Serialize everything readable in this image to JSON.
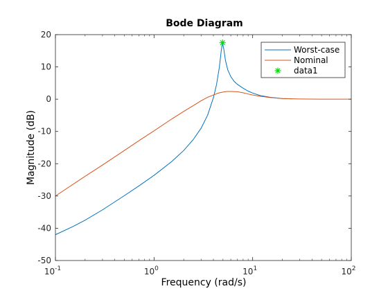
{
  "chart_data": {
    "type": "line",
    "title": "Bode Diagram",
    "xlabel": "Frequency  (rad/s)",
    "ylabel": "Magnitude (dB)",
    "xscale": "log",
    "xlim": [
      0.1,
      100
    ],
    "ylim": [
      -50,
      20
    ],
    "xticks": [
      {
        "value": 0.1,
        "base": "10",
        "exp": "-1"
      },
      {
        "value": 1,
        "base": "10",
        "exp": "0"
      },
      {
        "value": 10,
        "base": "10",
        "exp": "1"
      },
      {
        "value": 100,
        "base": "10",
        "exp": "2"
      }
    ],
    "yticks": [
      {
        "value": -50,
        "label": "-50"
      },
      {
        "value": -40,
        "label": "-40"
      },
      {
        "value": -30,
        "label": "-30"
      },
      {
        "value": -20,
        "label": "-20"
      },
      {
        "value": -10,
        "label": "-10"
      },
      {
        "value": 0,
        "label": "0"
      },
      {
        "value": 10,
        "label": "10"
      },
      {
        "value": 20,
        "label": "20"
      }
    ],
    "grid": false,
    "legend_location": "top-right",
    "series": [
      {
        "name": "Worst-case",
        "color": "#0072BD",
        "style": "line",
        "x": [
          0.1,
          0.15,
          0.2,
          0.3,
          0.5,
          0.7,
          1.0,
          1.5,
          2.0,
          2.5,
          3.0,
          3.5,
          4.0,
          4.3,
          4.6,
          4.8,
          4.95,
          5.1,
          5.3,
          5.6,
          6.0,
          6.5,
          7.0,
          8.0,
          9.0,
          10.0,
          12.0,
          15.0,
          20.0,
          25.0
        ],
        "y": [
          -42.0,
          -39.5,
          -37.5,
          -34.3,
          -29.9,
          -26.9,
          -23.6,
          -19.4,
          -15.9,
          -12.5,
          -9.0,
          -4.9,
          0.5,
          4.5,
          10.0,
          15.0,
          17.5,
          15.5,
          12.0,
          9.0,
          7.0,
          5.5,
          4.6,
          3.4,
          2.5,
          1.9,
          1.1,
          0.6,
          0.2,
          0.1
        ]
      },
      {
        "name": "Nominal",
        "color": "#D95319",
        "style": "line",
        "x": [
          0.1,
          0.2,
          0.3,
          0.5,
          0.7,
          1.0,
          1.5,
          2.0,
          2.5,
          3.0,
          3.5,
          4.0,
          4.5,
          5.0,
          5.5,
          6.0,
          7.0,
          8.0,
          9.0,
          10.0,
          12.0,
          15.0,
          20.0,
          30.0,
          50.0,
          100.0
        ],
        "y": [
          -30.0,
          -23.9,
          -20.4,
          -15.9,
          -12.9,
          -9.8,
          -6.2,
          -3.8,
          -2.0,
          -0.5,
          0.6,
          1.3,
          1.9,
          2.2,
          2.4,
          2.4,
          2.3,
          2.0,
          1.6,
          1.3,
          0.9,
          0.5,
          0.2,
          0.05,
          0.0,
          0.0
        ]
      },
      {
        "name": "data1",
        "color": "#00DD00",
        "style": "marker",
        "marker": "*",
        "x": [
          4.95
        ],
        "y": [
          17.5
        ]
      }
    ]
  }
}
